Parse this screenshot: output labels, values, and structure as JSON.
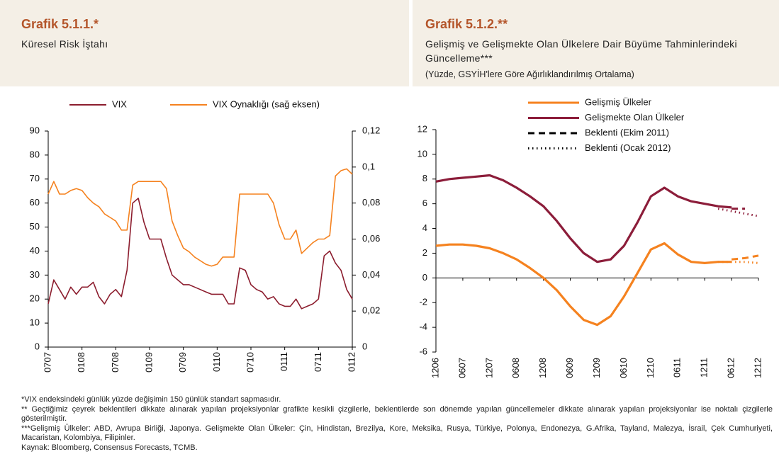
{
  "chart_data": [
    {
      "type": "line",
      "title": "Grafik 5.1.1.*",
      "subtitle": "Küresel Risk İştahı",
      "categories": [
        "0707",
        null,
        null,
        null,
        null,
        null,
        "0108",
        null,
        null,
        null,
        null,
        null,
        "0708",
        null,
        null,
        null,
        null,
        null,
        "0109",
        null,
        null,
        null,
        null,
        null,
        "0709",
        null,
        null,
        null,
        null,
        null,
        "0110",
        null,
        null,
        null,
        null,
        null,
        "0710",
        null,
        null,
        null,
        null,
        null,
        "0111",
        null,
        null,
        null,
        null,
        null,
        "0711",
        null,
        null,
        null,
        null,
        null,
        "0112"
      ],
      "series": [
        {
          "name": "VIX",
          "color": "#8c1d2e",
          "values": [
            18,
            28,
            24,
            20,
            25,
            22,
            25,
            25,
            27,
            21,
            18,
            22,
            24,
            21,
            32,
            60,
            62,
            52,
            45,
            45,
            45,
            37,
            30,
            28,
            26,
            26,
            25,
            24,
            23,
            22,
            22,
            22,
            18,
            18,
            33,
            32,
            26,
            24,
            23,
            20,
            21,
            18,
            17,
            17,
            20,
            16,
            17,
            18,
            20,
            38,
            40,
            35,
            32,
            24,
            20
          ]
        },
        {
          "name": "VIX Oynaklığı (sağ eksen)",
          "color": "#f5821f",
          "axis": "y2",
          "values": [
            0.085,
            0.092,
            0.085,
            0.085,
            0.087,
            0.088,
            0.087,
            0.083,
            0.08,
            0.078,
            0.074,
            0.072,
            0.07,
            0.065,
            0.065,
            0.09,
            0.092,
            0.092,
            0.092,
            0.092,
            0.092,
            0.088,
            0.07,
            0.062,
            0.055,
            0.053,
            0.05,
            0.048,
            0.046,
            0.045,
            0.046,
            0.05,
            0.05,
            0.05,
            0.085,
            0.085,
            0.085,
            0.085,
            0.085,
            0.085,
            0.08,
            0.068,
            0.06,
            0.06,
            0.065,
            0.052,
            0.055,
            0.058,
            0.06,
            0.06,
            0.062,
            0.095,
            0.098,
            0.099,
            0.096
          ]
        }
      ],
      "ylim": [
        0,
        90
      ],
      "yticks": [
        0,
        10,
        20,
        30,
        40,
        50,
        60,
        70,
        80,
        90
      ],
      "y2lim": [
        0,
        0.12
      ],
      "y2ticks": [
        0,
        {
          "value": 0.02,
          "label": "0,02"
        },
        {
          "value": 0.04,
          "label": "0,04"
        },
        {
          "value": 0.06,
          "label": "0,06"
        },
        {
          "value": 0.08,
          "label": "0,08"
        },
        {
          "value": 0.1,
          "label": "0,1"
        },
        {
          "value": 0.12,
          "label": "0,12"
        }
      ],
      "legend": "top"
    },
    {
      "type": "line",
      "title": "Grafik 5.1.2.**",
      "subtitle": "Gelişmiş ve Gelişmekte Olan Ülkelere Dair Büyüme Tahminlerindeki Güncelleme***",
      "unit": "(Yüzde, GSYİH'lere Göre Ağırlıklandırılmış Ortalama)",
      "categories": [
        "1206",
        null,
        "0607",
        null,
        "1207",
        null,
        "0608",
        null,
        "1208",
        null,
        "0609",
        null,
        "1209",
        null,
        "0610",
        null,
        "1210",
        null,
        "0611",
        null,
        "1211",
        null,
        "0612",
        null,
        "1212"
      ],
      "series": [
        {
          "name": "Gelişmiş Ülkeler",
          "color": "#f5821f",
          "values": [
            2.6,
            2.7,
            2.7,
            2.6,
            2.4,
            2.0,
            1.5,
            0.8,
            0.0,
            -1.0,
            -2.3,
            -3.4,
            -3.8,
            -3.1,
            -1.5,
            0.4,
            2.3,
            2.8,
            1.9,
            1.3,
            1.2,
            1.3,
            1.3,
            null,
            null
          ],
          "forecasts": [
            [
              null,
              null,
              null,
              null,
              null,
              null,
              null,
              null,
              null,
              null,
              null,
              null,
              null,
              null,
              null,
              null,
              null,
              null,
              null,
              null,
              null,
              null,
              1.5,
              1.6,
              1.8
            ],
            [
              null,
              null,
              null,
              null,
              null,
              null,
              null,
              null,
              null,
              null,
              null,
              null,
              null,
              null,
              null,
              null,
              null,
              null,
              null,
              null,
              null,
              1.3,
              1.3,
              1.3,
              1.2
            ]
          ]
        },
        {
          "name": "Gelişmekte Olan Ülkeler",
          "color": "#8c1d3a",
          "values": [
            7.8,
            8.0,
            8.1,
            8.2,
            8.3,
            7.9,
            7.3,
            6.6,
            5.8,
            4.6,
            3.2,
            2.0,
            1.3,
            1.5,
            2.6,
            4.5,
            6.6,
            7.3,
            6.6,
            6.2,
            6.0,
            5.8,
            5.7,
            null,
            null
          ],
          "forecasts": [
            [
              null,
              null,
              null,
              null,
              null,
              null,
              null,
              null,
              null,
              null,
              null,
              null,
              null,
              null,
              null,
              null,
              null,
              null,
              null,
              null,
              null,
              null,
              5.6,
              5.6,
              null
            ],
            [
              null,
              null,
              null,
              null,
              null,
              null,
              null,
              null,
              null,
              null,
              null,
              null,
              null,
              null,
              null,
              null,
              null,
              null,
              null,
              null,
              null,
              5.6,
              5.4,
              5.2,
              5.0
            ]
          ]
        }
      ],
      "forecast_styles": [
        {
          "name": "Beklenti (Ekim 2011)",
          "dash": "9 6",
          "color": "#000000"
        },
        {
          "name": "Beklenti (Ocak 2012)",
          "dash": "1.5 4.5",
          "color": "#000000"
        }
      ],
      "ylim": [
        -6,
        12
      ],
      "yticks": [
        -6,
        -4,
        -2,
        0,
        2,
        4,
        6,
        8,
        10,
        12
      ],
      "legend": "upper right"
    }
  ],
  "notes": [
    "*VIX endeksindeki günlük yüzde değişimin 150 günlük standart sapmasıdır.",
    "** Geçtiğimiz çeyrek beklentileri dikkate alınarak yapılan projeksiyonlar grafikte kesikli çizgilerle, beklentilerde son dönemde yapılan güncellemeler dikkate alınarak yapılan projeksiyonlar ise noktalı çizgilerle gösterilmiştir.",
    "***Gelişmiş Ülkeler: ABD, Avrupa Birliği, Japonya. Gelişmekte Olan Ülkeler: Çin, Hindistan, Brezilya, Kore, Meksika, Rusya, Türkiye, Polonya, Endonezya, G.Afrika, Tayland, Malezya, İsrail, Çek Cumhuriyeti, Macaristan, Kolombiya, Filipinler.",
    "Kaynak: Bloomberg, Consensus Forecasts, TCMB."
  ]
}
